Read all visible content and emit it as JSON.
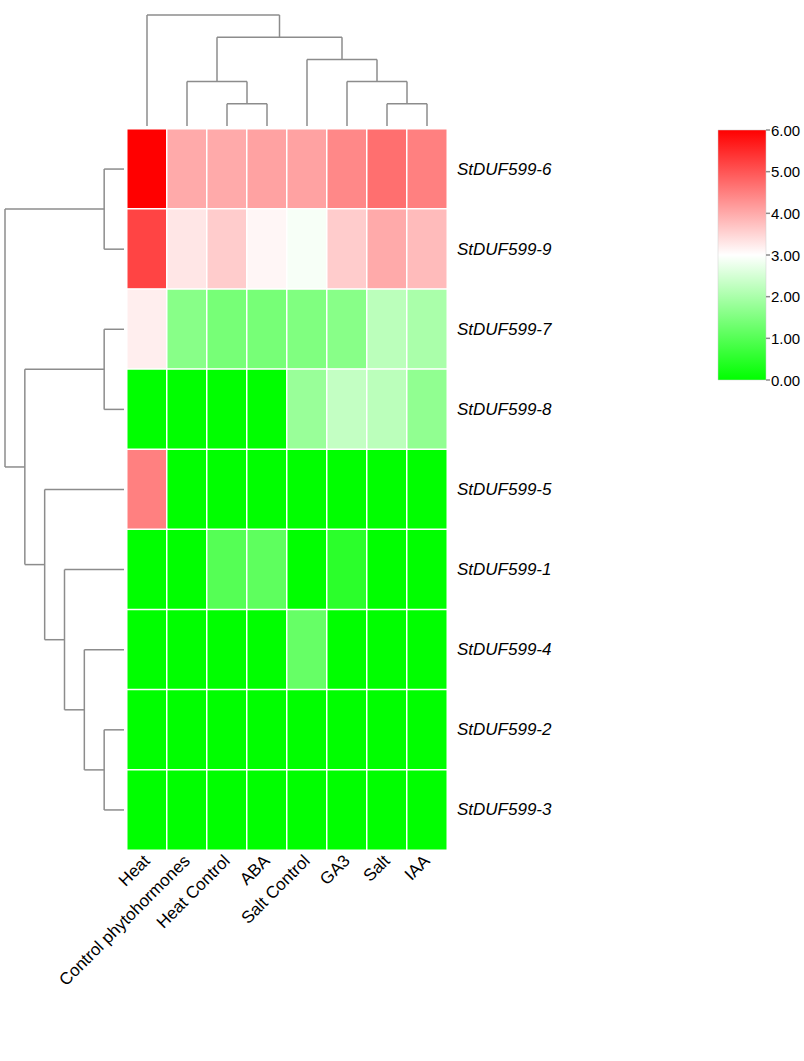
{
  "chart_data": {
    "type": "heatmap",
    "categories": [
      "Heat",
      "Control phytohormones",
      "Heat Control",
      "ABA",
      "Salt Control",
      "GA3",
      "Salt",
      "IAA"
    ],
    "rows": [
      "StDUF599-6",
      "StDUF599-9",
      "StDUF599-7",
      "StDUF599-8",
      "StDUF599-5",
      "StDUF599-1",
      "StDUF599-4",
      "StDUF599-2",
      "StDUF599-3"
    ],
    "values": [
      [
        6.0,
        4.0,
        4.0,
        4.1,
        4.1,
        4.4,
        4.7,
        4.5
      ],
      [
        5.2,
        3.3,
        3.6,
        3.1,
        2.9,
        3.6,
        4.0,
        3.8
      ],
      [
        3.2,
        1.6,
        1.4,
        1.4,
        1.5,
        1.6,
        2.2,
        2.0
      ],
      [
        0,
        0,
        0,
        0,
        1.8,
        2.3,
        2.2,
        1.7
      ],
      [
        4.5,
        0,
        0,
        0,
        0,
        0,
        0,
        0
      ],
      [
        0,
        0,
        1.0,
        1.1,
        0,
        0.5,
        0,
        0
      ],
      [
        0,
        0,
        0,
        0,
        1.2,
        0,
        0,
        0
      ],
      [
        0,
        0,
        0,
        0,
        0,
        0,
        0,
        0
      ],
      [
        0,
        0,
        0,
        0,
        0,
        0,
        0,
        0
      ]
    ],
    "colorbar": {
      "range": [
        0,
        6
      ],
      "ticks": [
        {
          "value": 0,
          "label": "0.00"
        },
        {
          "value": 1,
          "label": "1.00"
        },
        {
          "value": 2,
          "label": "2.00"
        },
        {
          "value": 3,
          "label": "3.00"
        },
        {
          "value": 4,
          "label": "4.00"
        },
        {
          "value": 5,
          "label": "5.00"
        },
        {
          "value": 6,
          "label": "6.00"
        }
      ]
    },
    "col_tree": [
      "Heat",
      [
        [
          "Control phytohormones",
          [
            "Heat Control",
            "ABA"
          ]
        ],
        [
          "Salt Control",
          [
            "GA3",
            [
              "Salt",
              "IAA"
            ]
          ]
        ]
      ]
    ],
    "row_tree": [
      [
        "StDUF599-6",
        "StDUF599-9"
      ],
      [
        [
          "StDUF599-7",
          "StDUF599-8"
        ],
        [
          "StDUF599-5",
          [
            "StDUF599-1",
            [
              "StDUF599-4",
              [
                "StDUF599-2",
                "StDUF599-3"
              ]
            ]
          ]
        ]
      ]
    ]
  }
}
